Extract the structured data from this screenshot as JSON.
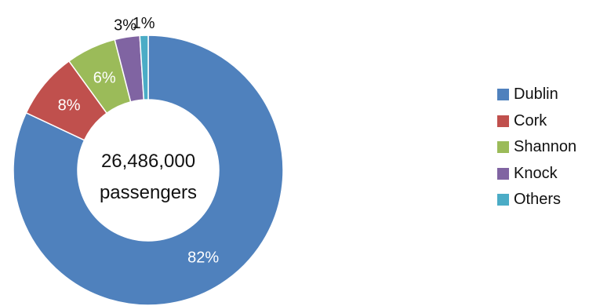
{
  "chart_data": {
    "type": "pie",
    "variant": "donut",
    "center_label": [
      "26,486,000",
      "passengers"
    ],
    "categories": [
      "Dublin",
      "Cork",
      "Shannon",
      "Knock",
      "Others"
    ],
    "values": [
      82,
      8,
      6,
      3,
      1
    ],
    "data_labels": [
      "82%",
      "8%",
      "6%",
      "3%",
      "1%"
    ],
    "colors": [
      "#4F81BD",
      "#C0504D",
      "#9BBB59",
      "#8064A2",
      "#4BACC6"
    ],
    "legend": "right",
    "start": "top",
    "direction": "clockwise"
  }
}
